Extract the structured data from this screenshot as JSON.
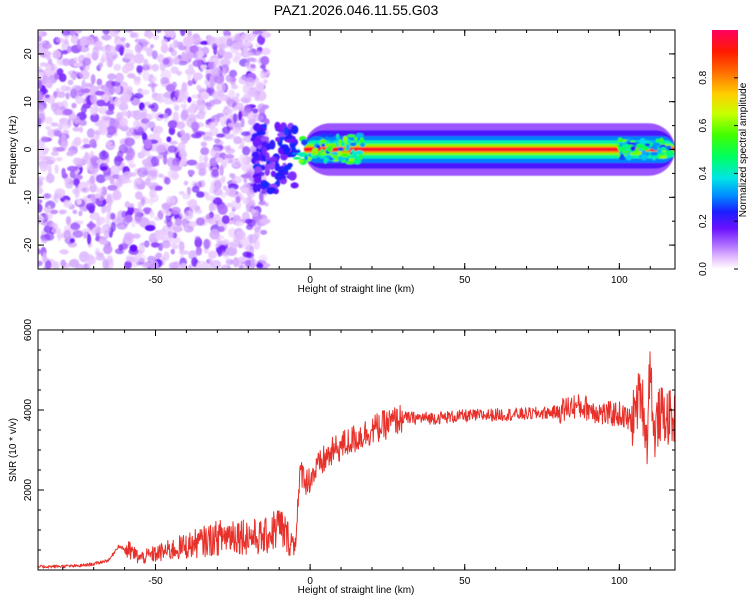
{
  "chart_data": [
    {
      "type": "heatmap",
      "title": "PAZ1.2026.046.11.55.G03",
      "xlabel": "Height of straight line (km)",
      "ylabel": "Frequency (Hz)",
      "xlim": [
        -88,
        118
      ],
      "ylim": [
        -25,
        25
      ],
      "xticks": [
        -50,
        0,
        50,
        100
      ],
      "yticks": [
        -20,
        -10,
        0,
        10,
        20
      ],
      "colorbar": {
        "label": "Normalized spectral amplitude",
        "range": [
          0,
          1
        ],
        "ticks": [
          0.0,
          0.2,
          0.4,
          0.6,
          0.8
        ],
        "tick_labels": [
          "0.0",
          "0.2",
          "0.4",
          "0.6",
          "0.8"
        ]
      },
      "features": [
        {
          "name": "noise-region",
          "x_range": [
            -88,
            -18
          ],
          "y_range": [
            -25,
            25
          ],
          "amplitude": [
            0.05,
            0.15
          ]
        },
        {
          "name": "transition",
          "x_range": [
            -18,
            -5
          ],
          "y_range": [
            -10,
            5
          ],
          "amplitude": [
            0.1,
            0.3
          ]
        },
        {
          "name": "carrier-line",
          "x_range": [
            -5,
            118
          ],
          "y_center": 0,
          "amplitude": [
            0.3,
            1.0
          ]
        }
      ]
    },
    {
      "type": "line",
      "xlabel": "Height of straight line (km)",
      "ylabel": "SNR (10 * v/v)",
      "xlim": [
        -88,
        118
      ],
      "ylim": [
        0,
        6000
      ],
      "xticks": [
        -50,
        0,
        50,
        100
      ],
      "yticks": [
        2000,
        4000,
        6000
      ],
      "series": [
        {
          "name": "SNR",
          "color": "#e8302a",
          "x": [
            -88,
            -75,
            -70,
            -65,
            -62,
            -58,
            -55,
            -50,
            -45,
            -40,
            -35,
            -30,
            -25,
            -20,
            -15,
            -10,
            -5,
            -3,
            -1,
            0,
            2,
            5,
            10,
            15,
            20,
            25,
            30,
            40,
            50,
            60,
            70,
            80,
            85,
            90,
            95,
            100,
            104,
            107,
            109,
            110,
            111,
            113,
            118
          ],
          "values": [
            80,
            100,
            150,
            250,
            600,
            450,
            300,
            400,
            500,
            600,
            700,
            800,
            900,
            850,
            800,
            1100,
            600,
            2500,
            2200,
            2300,
            2500,
            2800,
            3100,
            3300,
            3500,
            3650,
            3800,
            3800,
            3850,
            3880,
            3900,
            3950,
            4100,
            4050,
            3900,
            3900,
            3700,
            4500,
            3200,
            5500,
            3300,
            3900,
            3750
          ]
        }
      ]
    }
  ],
  "colors": {
    "line": "#e8302a",
    "background": "#ffffff",
    "axis": "#000000"
  }
}
